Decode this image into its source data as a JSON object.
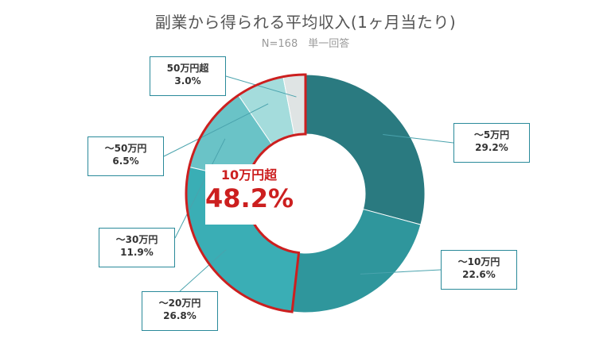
{
  "chart_data": {
    "type": "pie",
    "title": "副業から得られる平均収入(1ヶ月当たり)",
    "subtitle": "N=168　単一回答",
    "slices": [
      {
        "label": "〜5万円",
        "value": 29.2,
        "display": "29.2%",
        "color": "#2a7a80"
      },
      {
        "label": "〜10万円",
        "value": 22.6,
        "display": "22.6%",
        "color": "#2f969c"
      },
      {
        "label": "〜20万円",
        "value": 26.8,
        "display": "26.8%",
        "color": "#3aaeb5"
      },
      {
        "label": "〜30万円",
        "value": 11.9,
        "display": "11.9%",
        "color": "#6ac3c7"
      },
      {
        "label": "〜50万円",
        "value": 6.5,
        "display": "6.5%",
        "color": "#a4dcdc"
      },
      {
        "label": "50万円超",
        "value": 3.0,
        "display": "3.0%",
        "color": "#dfe4e4"
      }
    ],
    "callout": {
      "label": "10万円超",
      "value": "48.2%"
    },
    "colors": {
      "label_border": "#2a8a9a",
      "highlight": "#cc1f1f"
    }
  }
}
